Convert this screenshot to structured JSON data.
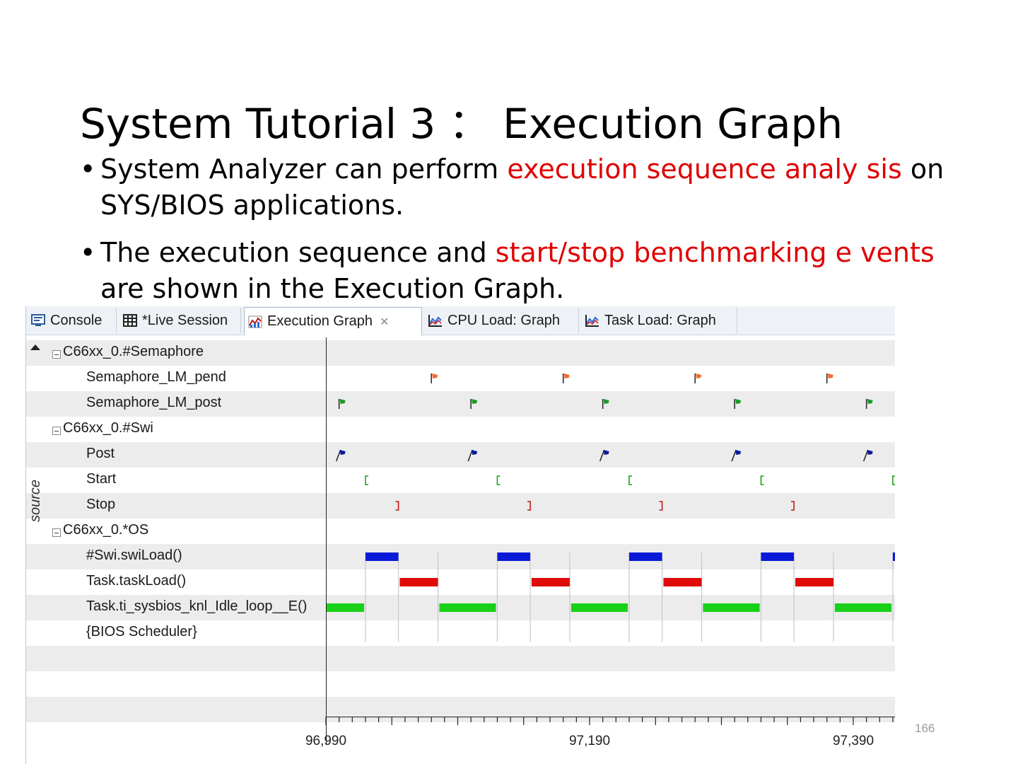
{
  "slide": {
    "title": "System Tutorial 3 ： Execution Graph",
    "bullets": [
      {
        "pre": "System Analyzer can perform ",
        "hl": "execution sequence analy sis",
        "post": " on SYS/BIOS applications."
      },
      {
        "pre": "The execution sequence and ",
        "hl": "start/stop benchmarking e vents",
        "post": " are shown in the Execution Graph."
      }
    ],
    "page_number": "166",
    "highlight_color": "#e00000"
  },
  "tabs": [
    {
      "label": "Console",
      "icon": "console-icon",
      "active": false
    },
    {
      "label": "*Live Session",
      "icon": "table-grid-icon",
      "active": false
    },
    {
      "label": "Execution Graph",
      "icon": "execution-graph-icon",
      "active": true
    },
    {
      "label": "CPU Load: Graph",
      "icon": "line-graph-icon",
      "active": false
    },
    {
      "label": "Task Load: Graph",
      "icon": "line-graph-icon",
      "active": false
    }
  ],
  "source_label": "source",
  "rows": [
    {
      "label": "C66xx_0.#Semaphore",
      "group": true
    },
    {
      "label": "Semaphore_LM_pend",
      "group": false
    },
    {
      "label": "Semaphore_LM_post",
      "group": false
    },
    {
      "label": "C66xx_0.#Swi",
      "group": true
    },
    {
      "label": "Post",
      "group": false
    },
    {
      "label": "Start",
      "group": false
    },
    {
      "label": "Stop",
      "group": false
    },
    {
      "label": "C66xx_0.*OS",
      "group": true
    },
    {
      "label": "#Swi.swiLoad()",
      "group": false
    },
    {
      "label": "Task.taskLoad()",
      "group": false
    },
    {
      "label": "Task.ti_sysbios_knl_Idle_loop__E()",
      "group": false
    },
    {
      "label": "{BIOS Scheduler}",
      "group": false
    },
    {
      "label": "",
      "group": false
    },
    {
      "label": "",
      "group": false
    },
    {
      "label": "",
      "group": false
    }
  ],
  "chart_data": {
    "type": "timeline",
    "x_axis": {
      "range": [
        96990,
        97420
      ],
      "tick_labels": [
        {
          "value": 96990,
          "label": "96,990"
        },
        {
          "value": 97190,
          "label": "97,190"
        },
        {
          "value": 97390,
          "label": "97,390"
        }
      ]
    },
    "period": 100,
    "events": {
      "pend": [
        97070,
        97170,
        97270,
        97370
      ],
      "post": [
        97000,
        97100,
        97200,
        97300,
        97400
      ],
      "swi_post": [
        97000,
        97100,
        97200,
        97300,
        97400
      ],
      "swi_start": [
        97020,
        97120,
        97220,
        97320,
        97420
      ],
      "swi_stop": [
        97045,
        97145,
        97245,
        97345
      ]
    },
    "intervals": {
      "swi_load": [
        [
          97020,
          97045
        ],
        [
          97120,
          97145
        ],
        [
          97220,
          97245
        ],
        [
          97320,
          97345
        ],
        [
          97420,
          97425
        ]
      ],
      "task_load": [
        [
          97046,
          97075
        ],
        [
          97146,
          97175
        ],
        [
          97246,
          97275
        ],
        [
          97346,
          97375
        ]
      ],
      "idle_loop": [
        [
          96990,
          97019
        ],
        [
          97076,
          97119
        ],
        [
          97176,
          97219
        ],
        [
          97276,
          97319
        ],
        [
          97376,
          97419
        ]
      ]
    },
    "colors": {
      "pend": "#f26a30",
      "post": "#1a9a2a",
      "swi_post": "#0a1a9a",
      "swi_start": "#1aa01a",
      "swi_stop": "#c01818",
      "swi_load": "#0a1ad8",
      "task_load": "#e00a0a",
      "idle_loop": "#18d018"
    }
  }
}
